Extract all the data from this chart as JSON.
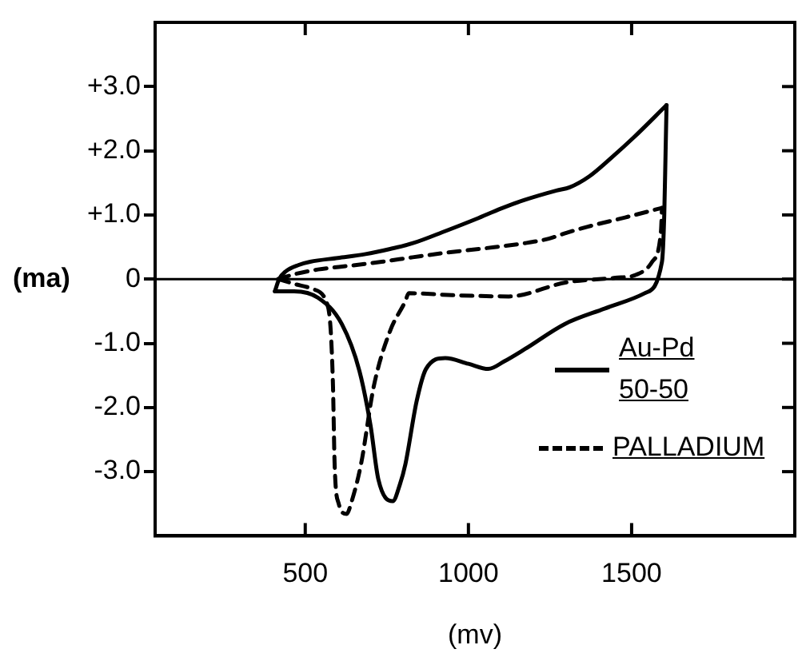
{
  "chart_data": {
    "type": "line",
    "xlabel": "(mv)",
    "ylabel": "(ma)",
    "xlim": [
      40,
      2000
    ],
    "ylim": [
      -4,
      4
    ],
    "xticks": [
      500,
      1000,
      1500
    ],
    "yticks": [
      {
        "value": 3,
        "label": "+3.0"
      },
      {
        "value": 2,
        "label": "+2.0"
      },
      {
        "value": 1,
        "label": "+1.0"
      },
      {
        "value": 0,
        "label": "0"
      },
      {
        "value": -1,
        "label": "-1.0"
      },
      {
        "value": -2,
        "label": "-2.0"
      },
      {
        "value": -3,
        "label": "-3.0"
      }
    ],
    "marker": "none",
    "legend": "bottom right",
    "ref_lines": [
      {
        "axis": "y",
        "value": 0
      }
    ],
    "series": [
      {
        "name": "Au-Pd 50-50",
        "color": "#000000",
        "line_style": "solid",
        "x": [
          407,
          420,
          440,
          480,
          515,
          600,
          685,
          760,
          830,
          930,
          1025,
          1100,
          1170,
          1270,
          1310,
          1370,
          1440,
          1505,
          1607
        ],
        "values": [
          -0.19,
          0.0,
          0.12,
          0.22,
          0.27,
          0.33,
          0.39,
          0.47,
          0.56,
          0.75,
          0.94,
          1.1,
          1.23,
          1.38,
          1.43,
          1.6,
          1.9,
          2.2,
          2.71
        ]
      },
      {
        "color": "#000000",
        "line_style": "solid",
        "x": [
          407,
          466,
          539,
          612,
          666,
          700,
          724,
          768,
          790,
          807,
          841,
          870,
          929,
          1000,
          1061,
          1110,
          1173,
          1295,
          1417,
          1540,
          1593,
          1600,
          1604,
          1607
        ],
        "values": [
          -0.19,
          -0.19,
          -0.29,
          -0.7,
          -1.43,
          -2.28,
          -3.12,
          -3.46,
          -3.2,
          -2.88,
          -1.91,
          -1.4,
          -1.23,
          -1.32,
          -1.4,
          -1.28,
          -1.09,
          -0.7,
          -0.46,
          -0.22,
          0.27,
          1.0,
          1.96,
          2.71
        ]
      },
      {
        "name": "PALLADIUM",
        "color": "#000000",
        "line_style": "dashed",
        "x": [
          417,
          470,
          539,
          640,
          734,
          829,
          929,
          1050,
          1173,
          1246,
          1300,
          1368,
          1480,
          1593
        ],
        "values": [
          0,
          0.08,
          0.15,
          0.21,
          0.27,
          0.34,
          0.41,
          0.48,
          0.56,
          0.63,
          0.72,
          0.82,
          0.96,
          1.11
        ]
      },
      {
        "color": "#000000",
        "line_style": "dashed",
        "x": [
          417,
          470,
          520,
          568,
          578,
          585,
          590,
          602,
          627,
          640,
          671,
          710,
          759,
          807,
          817,
          950,
          1124,
          1300,
          1450,
          1515,
          1563,
          1590,
          1593
        ],
        "values": [
          0,
          -0.08,
          -0.15,
          -0.4,
          -0.8,
          -1.67,
          -2.88,
          -3.49,
          -3.66,
          -3.5,
          -2.88,
          -1.67,
          -0.82,
          -0.34,
          -0.22,
          -0.25,
          -0.27,
          -0.05,
          0.02,
          0.07,
          0.27,
          0.75,
          1.11
        ]
      }
    ]
  }
}
